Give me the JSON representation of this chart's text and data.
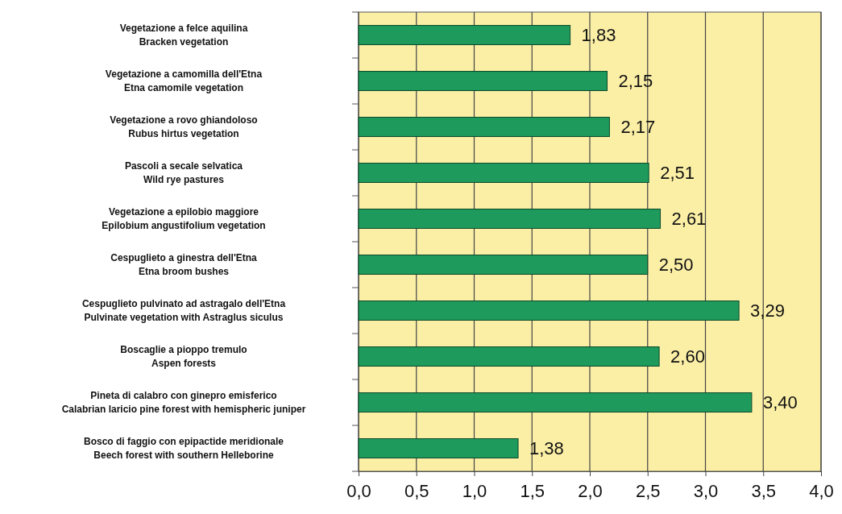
{
  "chart_data": {
    "type": "bar",
    "orientation": "horizontal",
    "categories": [
      "Vegetazione a felce aquilina\nBracken vegetation",
      "Vegetazione a camomilla dell'Etna\nEtna camomile vegetation",
      "Vegetazione a rovo ghiandoloso\nRubus hirtus vegetation",
      "Pascoli a secale selvatica\nWild rye pastures",
      "Vegetazione a epilobio maggiore\nEpilobium angustifolium vegetation",
      "Cespuglieto a ginestra dell'Etna\nEtna broom bushes",
      "Cespuglieto pulvinato ad astragalo dell'Etna\nPulvinate vegetation with Astraglus siculus",
      "Boscaglie a pioppo tremulo\nAspen forests",
      "Pineta di  calabro con ginepro emisferico\nCalabrian laricio pine forest with hemispheric juniper",
      "Bosco di faggio con epipactide meridionale\nBeech forest with southern Helleborine"
    ],
    "values": [
      1.83,
      2.15,
      2.17,
      2.51,
      2.61,
      2.5,
      3.29,
      2.6,
      3.4,
      1.38
    ],
    "value_labels": [
      "1,83",
      "2,15",
      "2,17",
      "2,51",
      "2,61",
      "2,50",
      "3,29",
      "2,60",
      "3,40",
      "1,38"
    ],
    "color": "#1e9a5c",
    "xlim": [
      0,
      4
    ],
    "xticks": [
      {
        "value": 0,
        "label": "0,0"
      },
      {
        "value": 0.5,
        "label": "0,5"
      },
      {
        "value": 1,
        "label": "1,0"
      },
      {
        "value": 1.5,
        "label": "1,5"
      },
      {
        "value": 2,
        "label": "2,0"
      },
      {
        "value": 2.5,
        "label": "2,5"
      },
      {
        "value": 3,
        "label": "3,0"
      },
      {
        "value": 3.5,
        "label": "3,5"
      },
      {
        "value": 4,
        "label": "4,0"
      }
    ],
    "grid": "x"
  }
}
